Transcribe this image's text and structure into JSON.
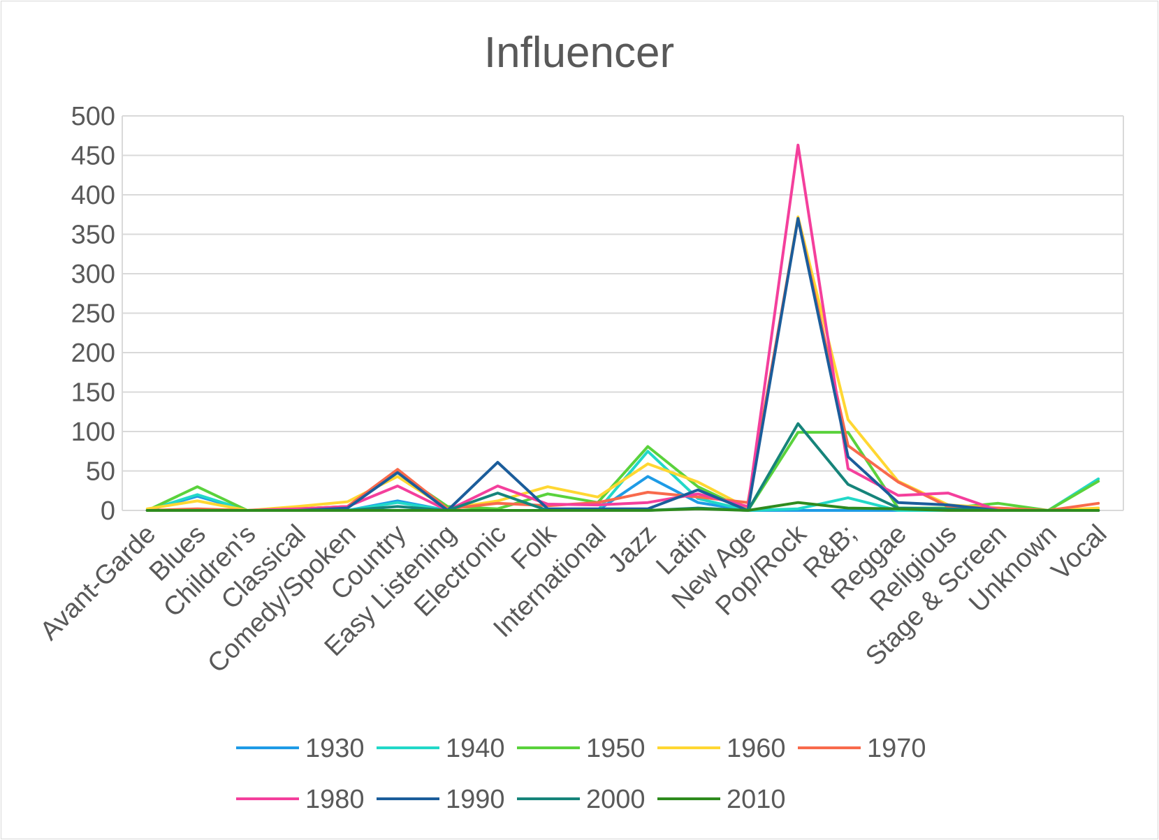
{
  "chart_data": {
    "type": "line",
    "title": "Influencer",
    "xlabel": "",
    "ylabel": "",
    "ylim": [
      0,
      500
    ],
    "yticks": [
      0,
      50,
      100,
      150,
      200,
      250,
      300,
      350,
      400,
      450,
      500
    ],
    "grid": true,
    "legend_position": "bottom",
    "categories": [
      "Avant-Garde",
      "Blues",
      "Children's",
      "Classical",
      "Comedy/Spoken",
      "Country",
      "Easy Listening",
      "Electronic",
      "Folk",
      "International",
      "Jazz",
      "Latin",
      "New Age",
      "Pop/Rock",
      "R&B;",
      "Reggae",
      "Religious",
      "Stage & Screen",
      "Unknown",
      "Vocal"
    ],
    "series": [
      {
        "name": "1930",
        "color": "#1e9be6",
        "values": [
          0,
          18,
          0,
          0,
          0,
          12,
          0,
          0,
          0,
          0,
          43,
          10,
          0,
          0,
          0,
          0,
          0,
          0,
          0,
          0
        ]
      },
      {
        "name": "1940",
        "color": "#22d8c8",
        "values": [
          0,
          20,
          0,
          0,
          0,
          10,
          0,
          0,
          0,
          0,
          75,
          15,
          0,
          2,
          16,
          0,
          0,
          0,
          0,
          40
        ]
      },
      {
        "name": "1950",
        "color": "#5ad23c",
        "values": [
          0,
          30,
          0,
          2,
          5,
          48,
          5,
          2,
          21,
          10,
          81,
          30,
          0,
          99,
          99,
          3,
          3,
          9,
          0,
          37
        ]
      },
      {
        "name": "1960",
        "color": "#ffd732",
        "values": [
          2,
          12,
          0,
          5,
          11,
          43,
          2,
          12,
          30,
          17,
          59,
          36,
          3,
          372,
          115,
          37,
          7,
          3,
          0,
          3
        ]
      },
      {
        "name": "1970",
        "color": "#f86a4c",
        "values": [
          0,
          2,
          0,
          2,
          5,
          52,
          2,
          9,
          6,
          10,
          23,
          17,
          10,
          370,
          82,
          36,
          5,
          3,
          0,
          9
        ]
      },
      {
        "name": "1980",
        "color": "#f43f9c",
        "values": [
          0,
          0,
          0,
          2,
          5,
          31,
          0,
          31,
          8,
          7,
          10,
          21,
          5,
          463,
          53,
          19,
          22,
          0,
          0,
          0
        ]
      },
      {
        "name": "1990",
        "color": "#1b5d9b",
        "values": [
          0,
          0,
          0,
          0,
          3,
          48,
          0,
          61,
          2,
          2,
          2,
          26,
          0,
          370,
          68,
          10,
          7,
          0,
          0,
          0
        ]
      },
      {
        "name": "2000",
        "color": "#16847a",
        "values": [
          0,
          0,
          0,
          0,
          0,
          5,
          0,
          22,
          0,
          0,
          0,
          3,
          0,
          110,
          33,
          3,
          2,
          0,
          0,
          0
        ]
      },
      {
        "name": "2010",
        "color": "#2e8b1e",
        "values": [
          0,
          0,
          0,
          0,
          0,
          0,
          0,
          0,
          0,
          0,
          0,
          2,
          0,
          10,
          3,
          2,
          0,
          0,
          0,
          0
        ]
      }
    ]
  }
}
